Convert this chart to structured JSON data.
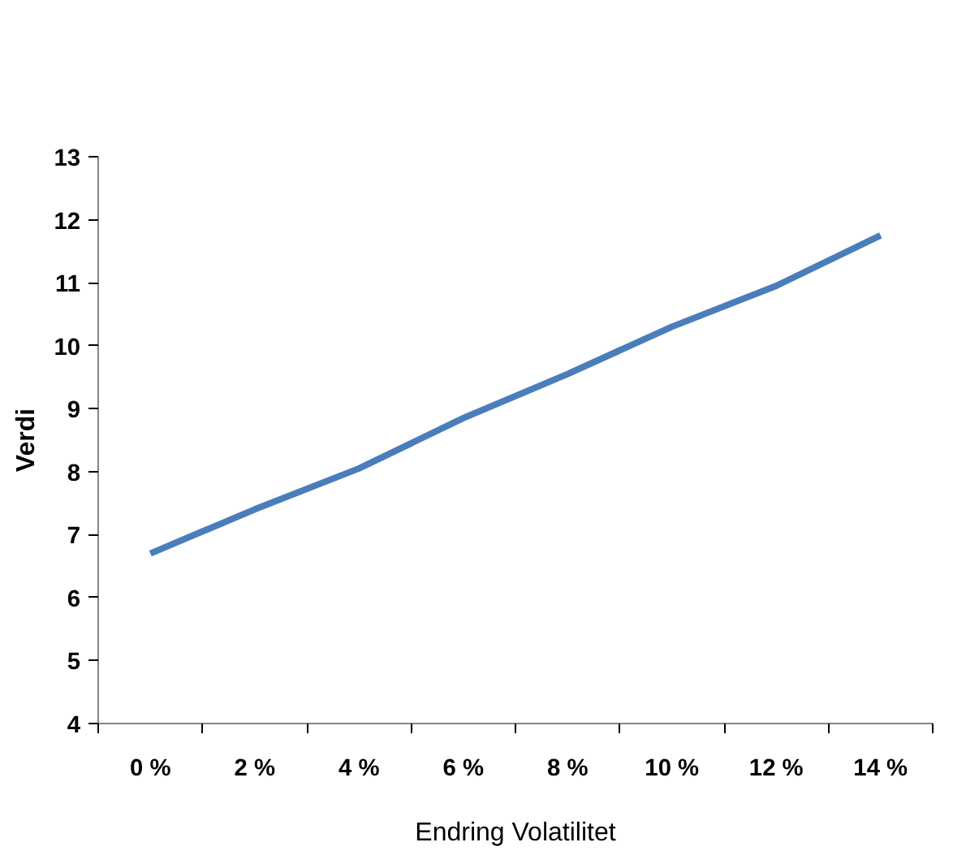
{
  "chart_data": {
    "type": "line",
    "xlabel": "Endring Volatilitet",
    "ylabel": "Verdi",
    "categories": [
      "0 %",
      "2 %",
      "4 %",
      "6 %",
      "8 %",
      "10 %",
      "12 %",
      "14 %"
    ],
    "series": [
      {
        "color": "#4a7ebb",
        "values": [
          6.7,
          7.4,
          8.05,
          8.85,
          9.55,
          10.3,
          10.95,
          11.75
        ]
      }
    ],
    "ylim": [
      4,
      13
    ],
    "yticks": [
      4,
      5,
      6,
      7,
      8,
      9,
      10,
      11,
      12,
      13
    ],
    "grid": false,
    "marker": "none",
    "line_style": "solid"
  }
}
